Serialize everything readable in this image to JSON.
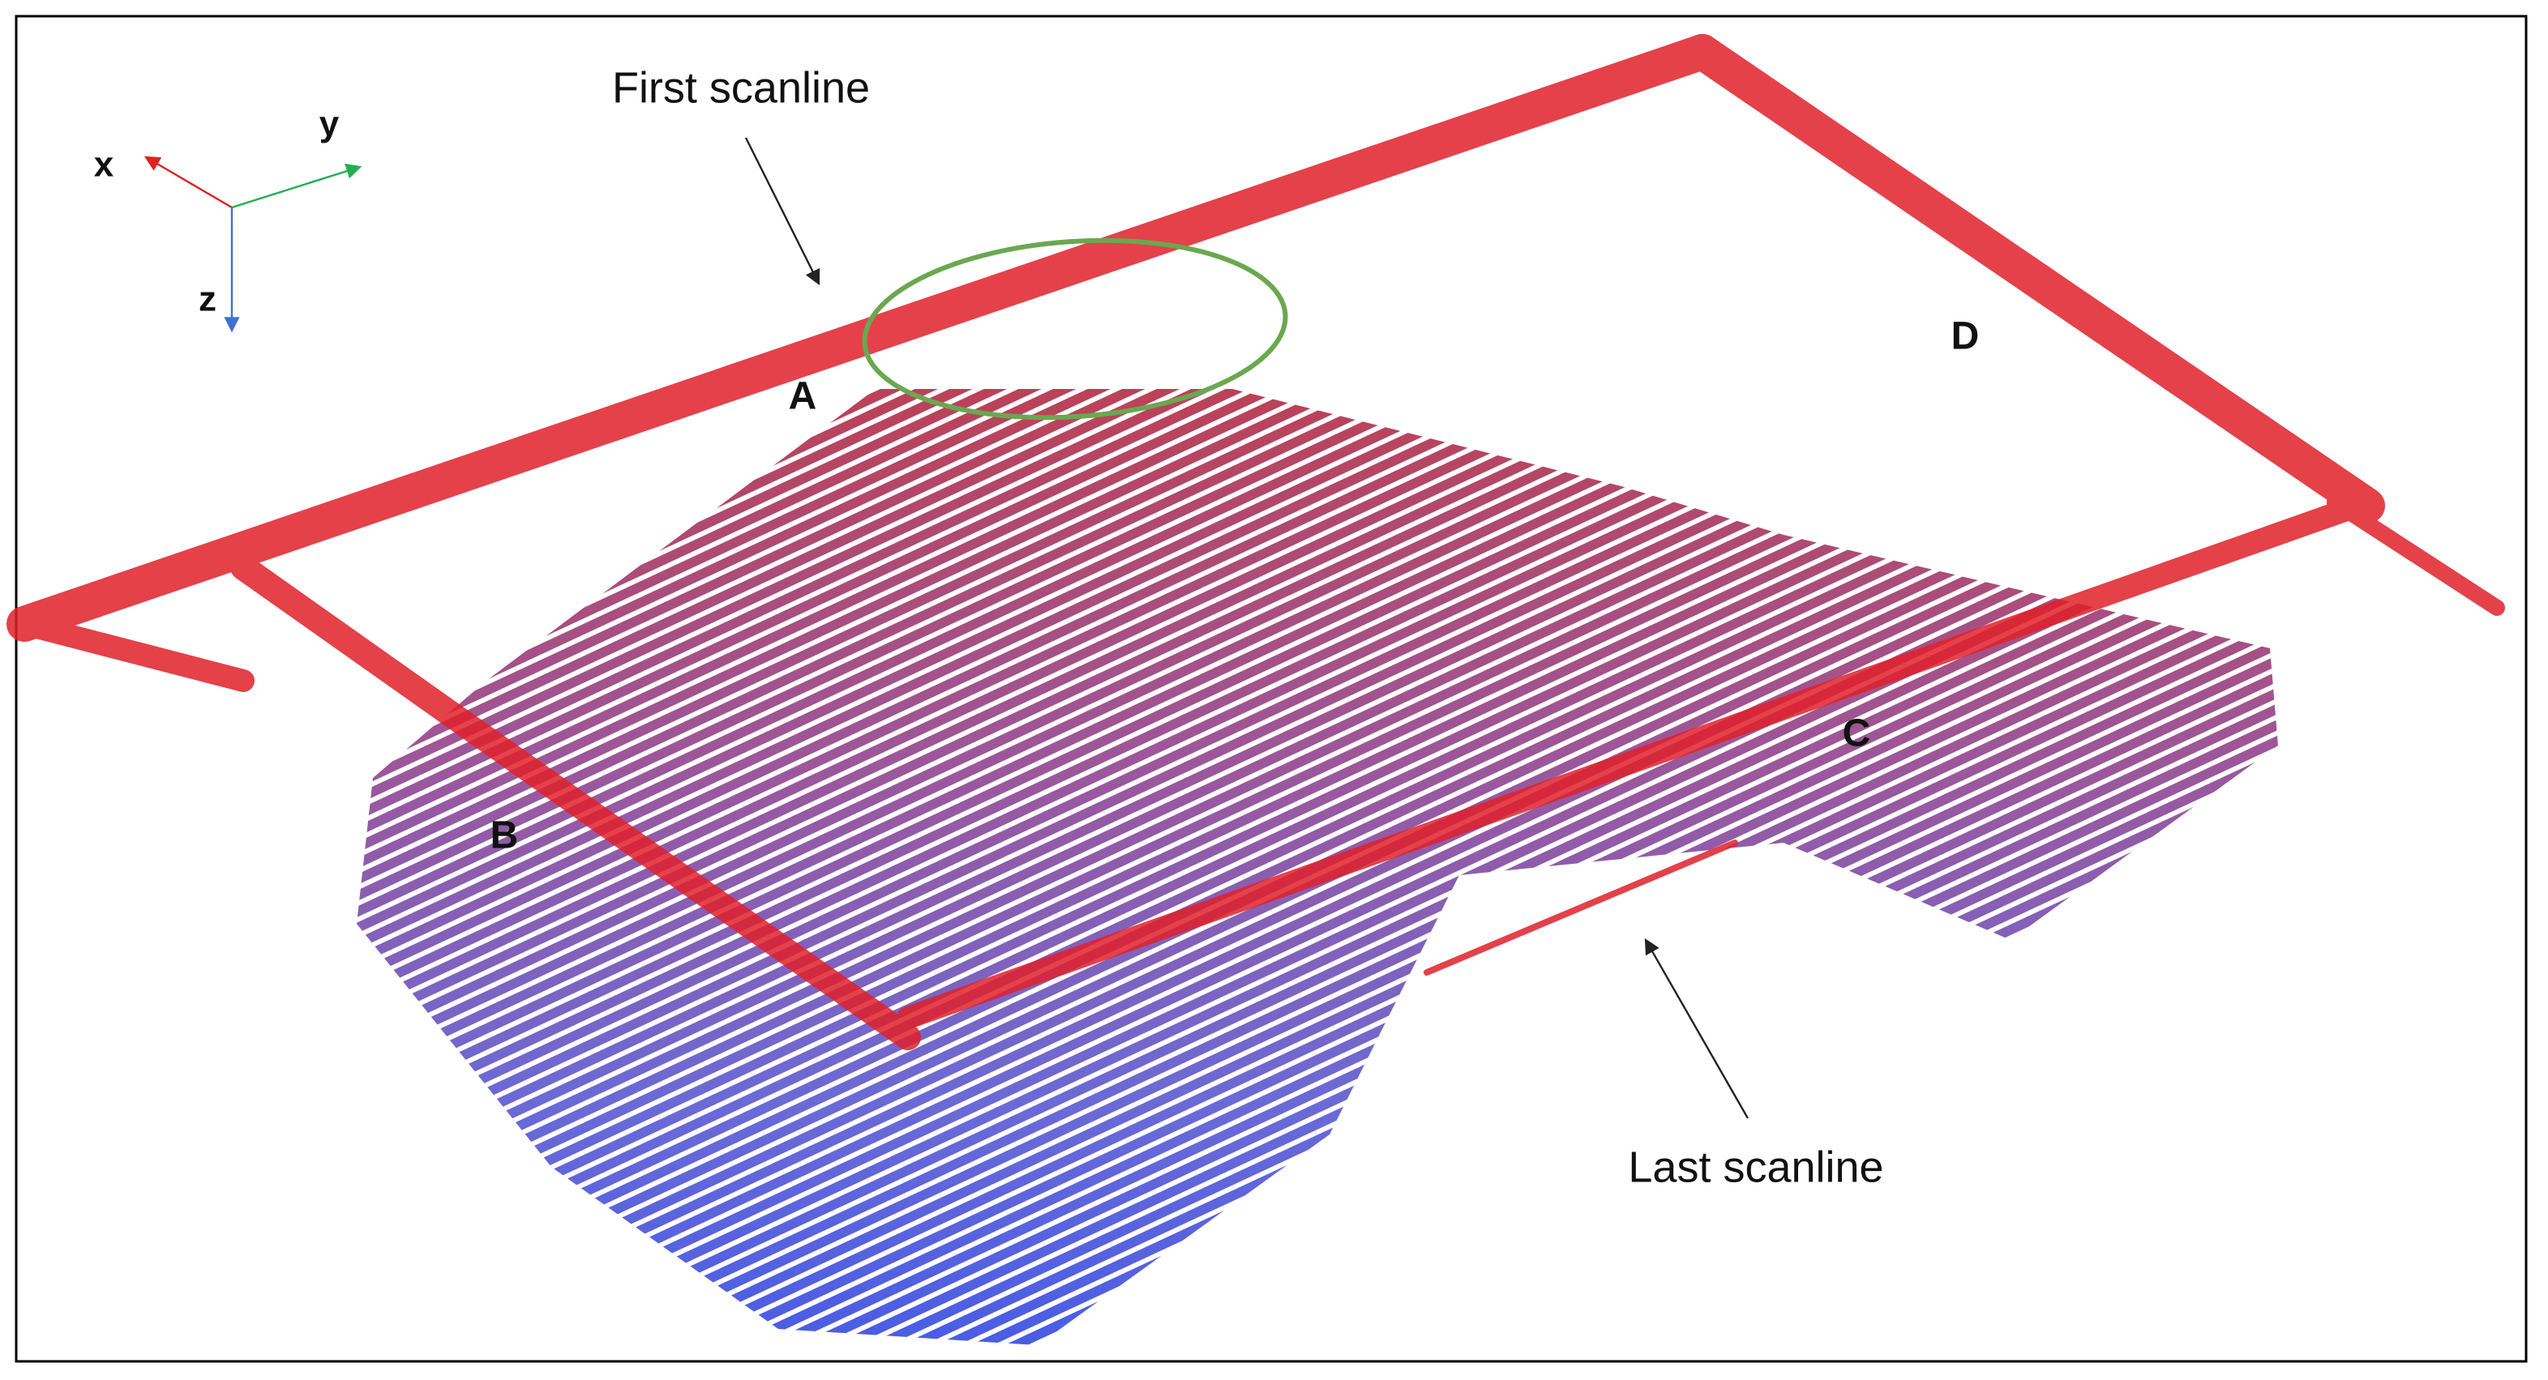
{
  "callouts": [
    {
      "text": "First scanline"
    },
    {
      "text": "Last scanline"
    }
  ],
  "regions": [
    "A",
    "B",
    "C",
    "D"
  ],
  "axes": [
    "x",
    "y",
    "z"
  ]
}
